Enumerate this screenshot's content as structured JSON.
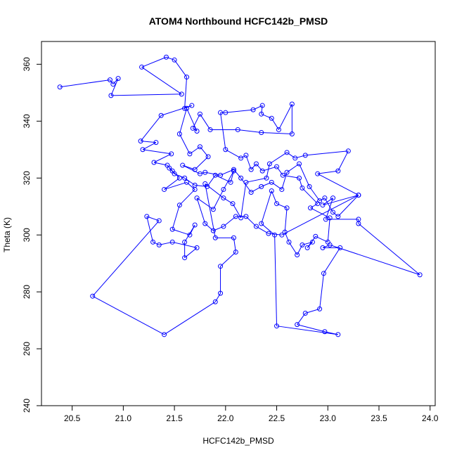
{
  "chart_data": {
    "type": "scatter",
    "title": "ATOM4 Northbound HCFC142b_PMSD",
    "xlabel": "HCFC142b_PMSD",
    "ylabel": "Theta (K)",
    "xlim": [
      20.2,
      24.05
    ],
    "ylim": [
      240,
      368
    ],
    "xticks": [
      20.5,
      21.0,
      21.5,
      22.0,
      22.5,
      23.0,
      23.5,
      24.0
    ],
    "xtick_labels": [
      "20.5",
      "21.0",
      "21.5",
      "22.0",
      "22.5",
      "23.0",
      "23.5",
      "24.0"
    ],
    "yticks": [
      240,
      260,
      280,
      300,
      320,
      340,
      360
    ],
    "ytick_labels": [
      "240",
      "260",
      "280",
      "300",
      "320",
      "340",
      "360"
    ],
    "grid": false,
    "legend": "none",
    "series_color": "#0000ff",
    "markers": "open-circle",
    "connected": true,
    "points": [
      [
        20.38,
        352
      ],
      [
        20.87,
        354.5
      ],
      [
        20.9,
        353
      ],
      [
        20.95,
        355
      ],
      [
        20.88,
        349
      ],
      [
        21.57,
        349.5
      ],
      [
        21.18,
        359
      ],
      [
        21.42,
        362.5
      ],
      [
        21.5,
        361.5
      ],
      [
        21.62,
        355.5
      ],
      [
        21.6,
        344.5
      ],
      [
        21.67,
        345.5
      ],
      [
        21.37,
        342
      ],
      [
        21.17,
        333
      ],
      [
        21.32,
        332.5
      ],
      [
        21.19,
        330
      ],
      [
        21.47,
        328.5
      ],
      [
        21.3,
        325.5
      ],
      [
        21.43,
        324.5
      ],
      [
        21.48,
        322.5
      ],
      [
        21.55,
        320
      ],
      [
        21.4,
        316
      ],
      [
        21.62,
        318.5
      ],
      [
        21.7,
        316
      ],
      [
        21.55,
        310.5
      ],
      [
        21.48,
        302
      ],
      [
        21.65,
        300
      ],
      [
        21.7,
        303.5
      ],
      [
        21.6,
        297.5
      ],
      [
        21.6,
        292
      ],
      [
        21.72,
        295.5
      ],
      [
        21.48,
        297.5
      ],
      [
        21.35,
        296.5
      ],
      [
        21.29,
        297.5
      ],
      [
        21.23,
        306.5
      ],
      [
        21.35,
        305
      ],
      [
        20.7,
        278.5
      ],
      [
        21.4,
        265
      ],
      [
        21.9,
        276.5
      ],
      [
        21.95,
        279.5
      ],
      [
        21.95,
        289
      ],
      [
        22.1,
        294
      ],
      [
        22.08,
        299
      ],
      [
        21.9,
        299
      ],
      [
        21.8,
        318
      ],
      [
        21.98,
        313
      ],
      [
        22.07,
        311
      ],
      [
        22.15,
        306
      ],
      [
        22.2,
        318.5
      ],
      [
        22.4,
        320
      ],
      [
        22.43,
        325
      ],
      [
        22.6,
        329
      ],
      [
        22.68,
        327
      ],
      [
        22.78,
        328
      ],
      [
        23.2,
        329.5
      ],
      [
        23.1,
        322.5
      ],
      [
        22.9,
        321.5
      ],
      [
        23.3,
        314
      ],
      [
        22.95,
        310.5
      ],
      [
        23.05,
        313
      ],
      [
        22.98,
        305.5
      ],
      [
        23.3,
        305.5
      ],
      [
        23.3,
        304
      ],
      [
        23.9,
        286
      ],
      [
        23.02,
        296.5
      ],
      [
        22.95,
        295.5
      ],
      [
        23.12,
        295.5
      ],
      [
        22.96,
        286.5
      ],
      [
        22.92,
        274
      ],
      [
        22.78,
        272.5
      ],
      [
        22.7,
        268.5
      ],
      [
        22.97,
        266
      ],
      [
        23.1,
        265
      ],
      [
        22.5,
        268
      ],
      [
        22.48,
        300
      ],
      [
        22.35,
        304
      ],
      [
        22.45,
        315.5
      ],
      [
        22.5,
        311
      ],
      [
        22.6,
        309.5
      ],
      [
        22.58,
        301
      ],
      [
        22.62,
        297.5
      ],
      [
        22.7,
        293
      ],
      [
        22.75,
        296.5
      ],
      [
        22.85,
        297.5
      ],
      [
        22.8,
        295.5
      ],
      [
        22.88,
        299.5
      ],
      [
        23.0,
        297.5
      ],
      [
        23.02,
        306
      ],
      [
        22.83,
        309.5
      ],
      [
        22.9,
        311
      ],
      [
        22.75,
        316.5
      ],
      [
        22.72,
        320
      ],
      [
        22.56,
        321
      ],
      [
        22.5,
        324
      ],
      [
        22.36,
        322.5
      ],
      [
        22.3,
        325
      ],
      [
        22.25,
        323
      ],
      [
        22.2,
        328
      ],
      [
        22.15,
        327
      ],
      [
        22.0,
        330
      ],
      [
        21.95,
        343
      ],
      [
        22.0,
        343
      ],
      [
        22.27,
        344
      ],
      [
        22.36,
        345.5
      ],
      [
        22.35,
        342.5
      ],
      [
        22.45,
        341
      ],
      [
        22.52,
        337
      ],
      [
        22.65,
        346
      ],
      [
        22.65,
        335.5
      ],
      [
        22.35,
        336
      ],
      [
        22.12,
        337
      ],
      [
        21.85,
        337
      ],
      [
        21.75,
        342.5
      ],
      [
        21.68,
        337.5
      ],
      [
        21.72,
        336.5
      ],
      [
        21.62,
        344.5
      ],
      [
        21.55,
        335.5
      ],
      [
        21.65,
        328.5
      ],
      [
        21.75,
        331
      ],
      [
        21.83,
        327.5
      ],
      [
        21.7,
        323
      ],
      [
        21.58,
        324.5
      ],
      [
        21.75,
        321.5
      ],
      [
        21.8,
        322
      ],
      [
        21.95,
        321
      ],
      [
        22.08,
        323
      ],
      [
        22.15,
        320
      ],
      [
        22.25,
        315
      ],
      [
        22.35,
        317
      ],
      [
        22.45,
        318.5
      ],
      [
        22.55,
        316
      ],
      [
        22.6,
        322
      ],
      [
        22.72,
        325
      ],
      [
        22.82,
        317
      ],
      [
        22.92,
        312
      ],
      [
        22.97,
        313
      ],
      [
        23.05,
        308
      ],
      [
        23.1,
        306.5
      ],
      [
        23.3,
        314
      ],
      [
        22.55,
        300
      ],
      [
        22.42,
        300.5
      ],
      [
        22.3,
        303
      ],
      [
        22.2,
        306.5
      ],
      [
        22.1,
        306.5
      ],
      [
        21.98,
        303
      ],
      [
        21.88,
        301.5
      ],
      [
        21.8,
        304
      ],
      [
        21.72,
        313
      ],
      [
        21.88,
        309
      ],
      [
        21.98,
        316
      ],
      [
        22.08,
        322.5
      ],
      [
        22.05,
        318.5
      ],
      [
        21.9,
        321
      ],
      [
        21.82,
        317
      ],
      [
        21.7,
        317.5
      ],
      [
        21.6,
        320
      ],
      [
        21.5,
        321.5
      ],
      [
        21.45,
        323.5
      ]
    ]
  }
}
